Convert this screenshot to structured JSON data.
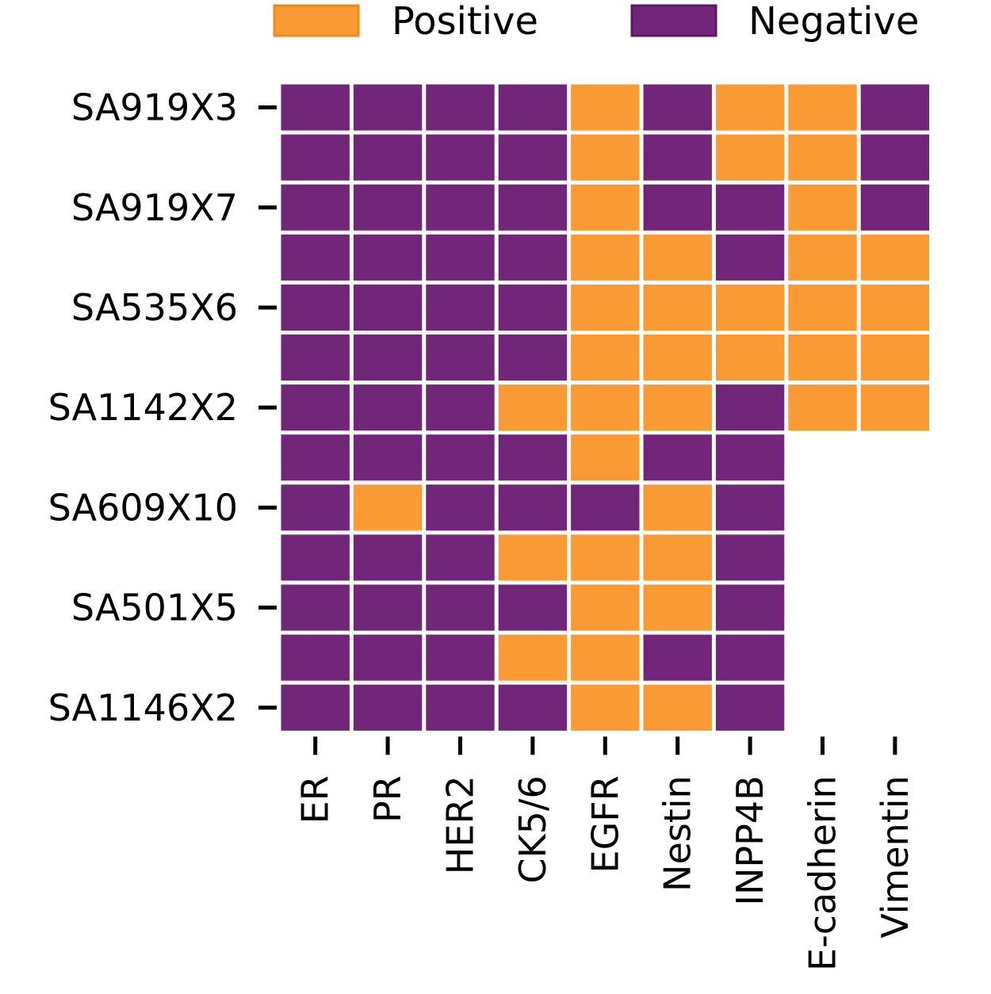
{
  "chart_data": {
    "type": "heatmap",
    "title": "",
    "xlabel": "",
    "ylabel": "",
    "columns": [
      "ER",
      "PR",
      "HER2",
      "CK5/6",
      "EGFR",
      "Nestin",
      "INPP4B",
      "E-cadherin",
      "Vimentin"
    ],
    "row_tick_labels": [
      "SA919X3",
      "",
      "SA919X7",
      "",
      "SA535X6",
      "",
      "SA1142X2",
      "",
      "SA609X10",
      "",
      "SA501X5",
      "",
      "SA1146X2"
    ],
    "legend": {
      "placement": "top",
      "entries": [
        {
          "label": "Positive",
          "value": 1,
          "color": "#f99a35"
        },
        {
          "label": "Negative",
          "value": 0,
          "color": "#722679"
        }
      ]
    },
    "colors": {
      "positive": "#f99a35",
      "negative": "#722679",
      "grid_line": "#ffffff"
    },
    "missing_value_note": null,
    "matrix": [
      [
        0,
        0,
        0,
        0,
        1,
        0,
        1,
        1,
        0
      ],
      [
        0,
        0,
        0,
        0,
        1,
        0,
        1,
        1,
        0
      ],
      [
        0,
        0,
        0,
        0,
        1,
        0,
        0,
        1,
        0
      ],
      [
        0,
        0,
        0,
        0,
        1,
        1,
        0,
        1,
        1
      ],
      [
        0,
        0,
        0,
        0,
        1,
        1,
        1,
        1,
        1
      ],
      [
        0,
        0,
        0,
        0,
        1,
        1,
        1,
        1,
        1
      ],
      [
        0,
        0,
        0,
        1,
        1,
        1,
        0,
        1,
        1
      ],
      [
        0,
        0,
        0,
        0,
        1,
        0,
        0,
        null,
        null
      ],
      [
        0,
        1,
        0,
        0,
        0,
        1,
        0,
        null,
        null
      ],
      [
        0,
        0,
        0,
        1,
        1,
        1,
        0,
        null,
        null
      ],
      [
        0,
        0,
        0,
        0,
        1,
        1,
        0,
        null,
        null
      ],
      [
        0,
        0,
        0,
        1,
        1,
        0,
        0,
        null,
        null
      ],
      [
        0,
        0,
        0,
        0,
        1,
        1,
        0,
        null,
        null
      ]
    ]
  }
}
